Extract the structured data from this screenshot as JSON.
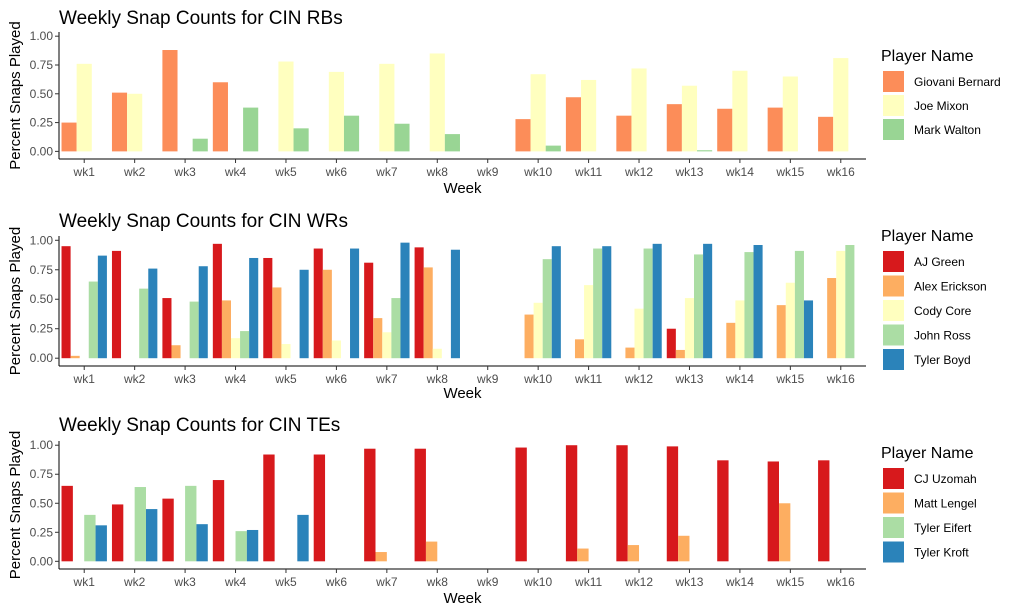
{
  "chart_data": [
    {
      "type": "bar",
      "title": "Weekly Snap Counts for CIN RBs",
      "xlabel": "Week",
      "ylabel": "Percent Snaps Played",
      "ylim": [
        0,
        1
      ],
      "yticks": [
        "0.00",
        "0.25",
        "0.50",
        "0.75",
        "1.00"
      ],
      "categories": [
        "wk1",
        "wk2",
        "wk3",
        "wk4",
        "wk5",
        "wk6",
        "wk7",
        "wk8",
        "wk9",
        "wk10",
        "wk11",
        "wk12",
        "wk13",
        "wk14",
        "wk15",
        "wk16"
      ],
      "legend_title": "Player Name",
      "legend_position": "right",
      "series": [
        {
          "name": "Giovani Bernard",
          "color": "#fc8d59",
          "values": [
            0.25,
            0.51,
            0.88,
            0.6,
            null,
            null,
            null,
            null,
            null,
            0.28,
            0.47,
            0.31,
            0.41,
            0.37,
            0.38,
            0.3
          ]
        },
        {
          "name": "Joe Mixon",
          "color": "#ffffbf",
          "values": [
            0.76,
            0.5,
            null,
            null,
            0.78,
            0.69,
            0.76,
            0.85,
            null,
            0.67,
            0.62,
            0.72,
            0.57,
            0.7,
            0.65,
            0.81
          ]
        },
        {
          "name": "Mark Walton",
          "color": "#99d594",
          "values": [
            null,
            null,
            0.11,
            0.38,
            0.2,
            0.31,
            0.24,
            0.15,
            null,
            0.05,
            null,
            null,
            0.01,
            null,
            null,
            null
          ]
        }
      ]
    },
    {
      "type": "bar",
      "title": "Weekly Snap Counts for CIN WRs",
      "xlabel": "Week",
      "ylabel": "Percent Snaps Played",
      "ylim": [
        0,
        1
      ],
      "yticks": [
        "0.00",
        "0.25",
        "0.50",
        "0.75",
        "1.00"
      ],
      "categories": [
        "wk1",
        "wk2",
        "wk3",
        "wk4",
        "wk5",
        "wk6",
        "wk7",
        "wk8",
        "wk9",
        "wk10",
        "wk11",
        "wk12",
        "wk13",
        "wk14",
        "wk15",
        "wk16"
      ],
      "legend_title": "Player Name",
      "legend_position": "right",
      "series": [
        {
          "name": "AJ Green",
          "color": "#d7191c",
          "values": [
            0.95,
            0.91,
            0.51,
            0.97,
            0.85,
            0.93,
            0.81,
            0.94,
            null,
            null,
            null,
            null,
            0.25,
            null,
            null,
            null
          ]
        },
        {
          "name": "Alex Erickson",
          "color": "#fdae61",
          "values": [
            0.02,
            null,
            0.11,
            0.49,
            0.6,
            0.75,
            0.34,
            0.77,
            null,
            0.37,
            0.16,
            0.09,
            0.07,
            0.3,
            0.45,
            0.68
          ]
        },
        {
          "name": "Cody Core",
          "color": "#ffffbf",
          "values": [
            null,
            null,
            null,
            0.17,
            0.12,
            0.15,
            0.22,
            0.08,
            null,
            0.47,
            0.62,
            0.42,
            0.51,
            0.49,
            0.64,
            0.91
          ]
        },
        {
          "name": "John Ross",
          "color": "#abdda4",
          "values": [
            0.65,
            0.59,
            0.48,
            0.23,
            null,
            null,
            0.51,
            null,
            null,
            0.84,
            0.93,
            0.93,
            0.88,
            0.9,
            0.91,
            0.96
          ]
        },
        {
          "name": "Tyler Boyd",
          "color": "#2b83ba",
          "values": [
            0.87,
            0.76,
            0.78,
            0.85,
            0.75,
            0.93,
            0.98,
            0.92,
            null,
            0.95,
            0.95,
            0.97,
            0.97,
            0.96,
            0.49,
            null
          ]
        }
      ]
    },
    {
      "type": "bar",
      "title": "Weekly Snap Counts for CIN TEs",
      "xlabel": "Week",
      "ylabel": "Percent Snaps Played",
      "ylim": [
        0,
        1
      ],
      "yticks": [
        "0.00",
        "0.25",
        "0.50",
        "0.75",
        "1.00"
      ],
      "categories": [
        "wk1",
        "wk2",
        "wk3",
        "wk4",
        "wk5",
        "wk6",
        "wk7",
        "wk8",
        "wk9",
        "wk10",
        "wk11",
        "wk12",
        "wk13",
        "wk14",
        "wk15",
        "wk16"
      ],
      "legend_title": "Player Name",
      "legend_position": "right",
      "series": [
        {
          "name": "CJ Uzomah",
          "color": "#d7191c",
          "values": [
            0.65,
            0.49,
            0.54,
            0.7,
            0.92,
            0.92,
            0.97,
            0.97,
            null,
            0.98,
            1.0,
            1.0,
            0.99,
            0.87,
            0.86,
            0.87
          ]
        },
        {
          "name": "Matt Lengel",
          "color": "#fdae61",
          "values": [
            null,
            null,
            null,
            null,
            null,
            null,
            0.08,
            0.17,
            null,
            null,
            0.11,
            0.14,
            0.22,
            null,
            0.5,
            null
          ]
        },
        {
          "name": "Tyler Eifert",
          "color": "#abdda4",
          "values": [
            0.4,
            0.64,
            0.65,
            0.26,
            null,
            null,
            null,
            null,
            null,
            null,
            null,
            null,
            null,
            null,
            null,
            null
          ]
        },
        {
          "name": "Tyler Kroft",
          "color": "#2b83ba",
          "values": [
            0.31,
            0.45,
            0.32,
            0.27,
            0.4,
            null,
            null,
            null,
            null,
            null,
            null,
            null,
            null,
            null,
            null,
            null
          ]
        }
      ]
    }
  ]
}
